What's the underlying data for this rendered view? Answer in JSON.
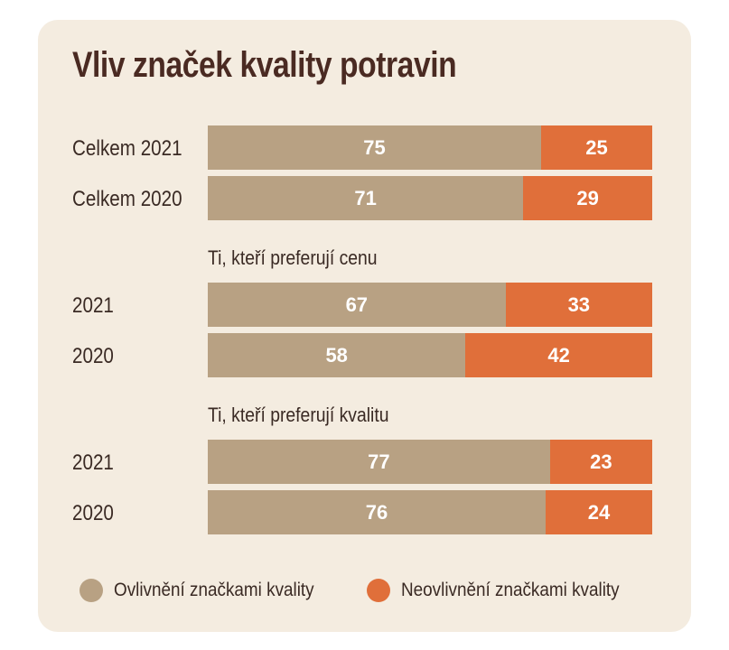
{
  "colors": {
    "influenced": "#b8a183",
    "not_influenced": "#e06f3a",
    "background": "#f4ece0"
  },
  "chart_data": {
    "type": "bar",
    "title": "Vliv značek kvality potravin",
    "stacked": "horizontal-100",
    "groups": [
      {
        "label": "",
        "rows": [
          {
            "label": "Celkem 2021",
            "values": [
              75,
              25
            ]
          },
          {
            "label": "Celkem 2020",
            "values": [
              71,
              29
            ]
          }
        ]
      },
      {
        "label": "Ti, kteří preferují cenu",
        "rows": [
          {
            "label": "2021",
            "values": [
              67,
              33
            ]
          },
          {
            "label": "2020",
            "values": [
              58,
              42
            ]
          }
        ]
      },
      {
        "label": "Ti, kteří preferují kvalitu",
        "rows": [
          {
            "label": "2021",
            "values": [
              77,
              23
            ]
          },
          {
            "label": "2020",
            "values": [
              76,
              24
            ]
          }
        ]
      }
    ],
    "series": [
      {
        "name": "Ovlivnění značkami kvality"
      },
      {
        "name": "Neovlivnění značkami kvality"
      }
    ],
    "xlim": [
      0,
      100
    ],
    "legend": "bottom"
  }
}
